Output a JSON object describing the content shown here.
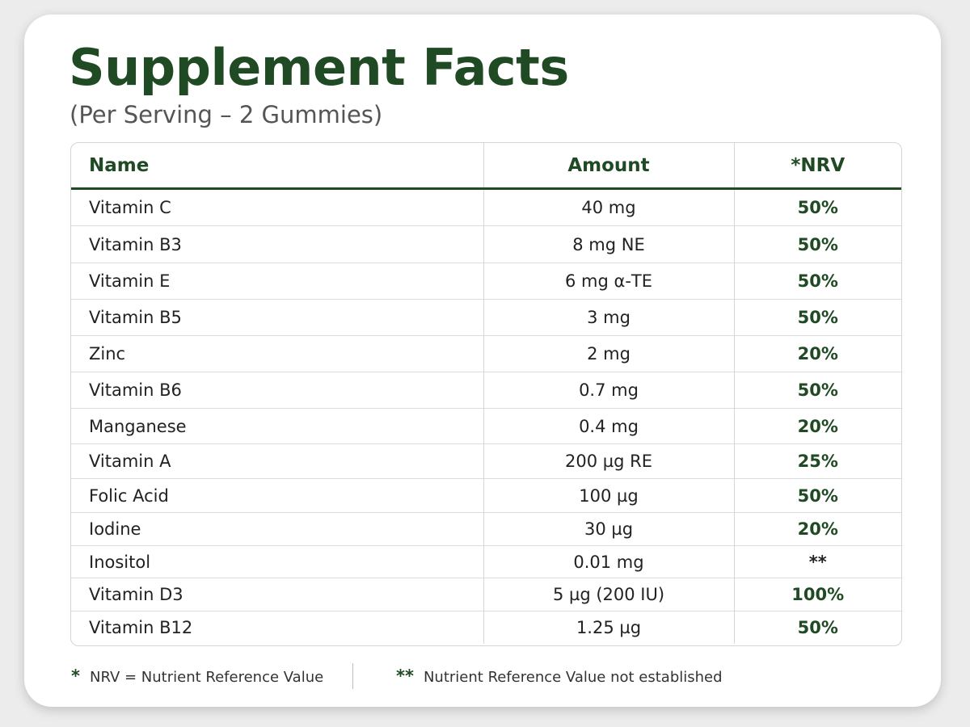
{
  "title": "Supplement Facts",
  "subtitle": "(Per Serving – 2 Gummies)",
  "colors": {
    "accent": "#1f4a23",
    "text": "#222222",
    "border": "#d5d5d5"
  },
  "table": {
    "headers": {
      "name": "Name",
      "amount": "Amount",
      "nrv": "*NRV"
    },
    "rows": [
      {
        "name": "Vitamin C",
        "amount": "40 mg",
        "nrv": "50%"
      },
      {
        "name": "Vitamin B3",
        "amount": "8 mg NE",
        "nrv": "50%"
      },
      {
        "name": "Vitamin E",
        "amount": "6 mg α-TE",
        "nrv": "50%"
      },
      {
        "name": "Vitamin B5",
        "amount": "3 mg",
        "nrv": "50%"
      },
      {
        "name": "Zinc",
        "amount": "2 mg",
        "nrv": "20%"
      },
      {
        "name": "Vitamin B6",
        "amount": "0.7 mg",
        "nrv": "50%"
      },
      {
        "name": "Manganese",
        "amount": "0.4 mg",
        "nrv": "20%"
      },
      {
        "name": "Vitamin A",
        "amount": "200 µg RE",
        "nrv": "25%"
      },
      {
        "name": "Folic Acid",
        "amount": "100 µg",
        "nrv": "50%"
      },
      {
        "name": "Iodine",
        "amount": "30 µg",
        "nrv": "20%"
      },
      {
        "name": "Inositol",
        "amount": "0.01 mg",
        "nrv": "**"
      },
      {
        "name": "Vitamin D3",
        "amount": "5 µg (200 IU)",
        "nrv": "100%"
      },
      {
        "name": "Vitamin B12",
        "amount": "1.25 µg",
        "nrv": "50%"
      }
    ]
  },
  "footnotes": [
    {
      "mark": "*",
      "text": "NRV = Nutrient Reference Value"
    },
    {
      "mark": "**",
      "text": "Nutrient Reference Value not established"
    }
  ]
}
